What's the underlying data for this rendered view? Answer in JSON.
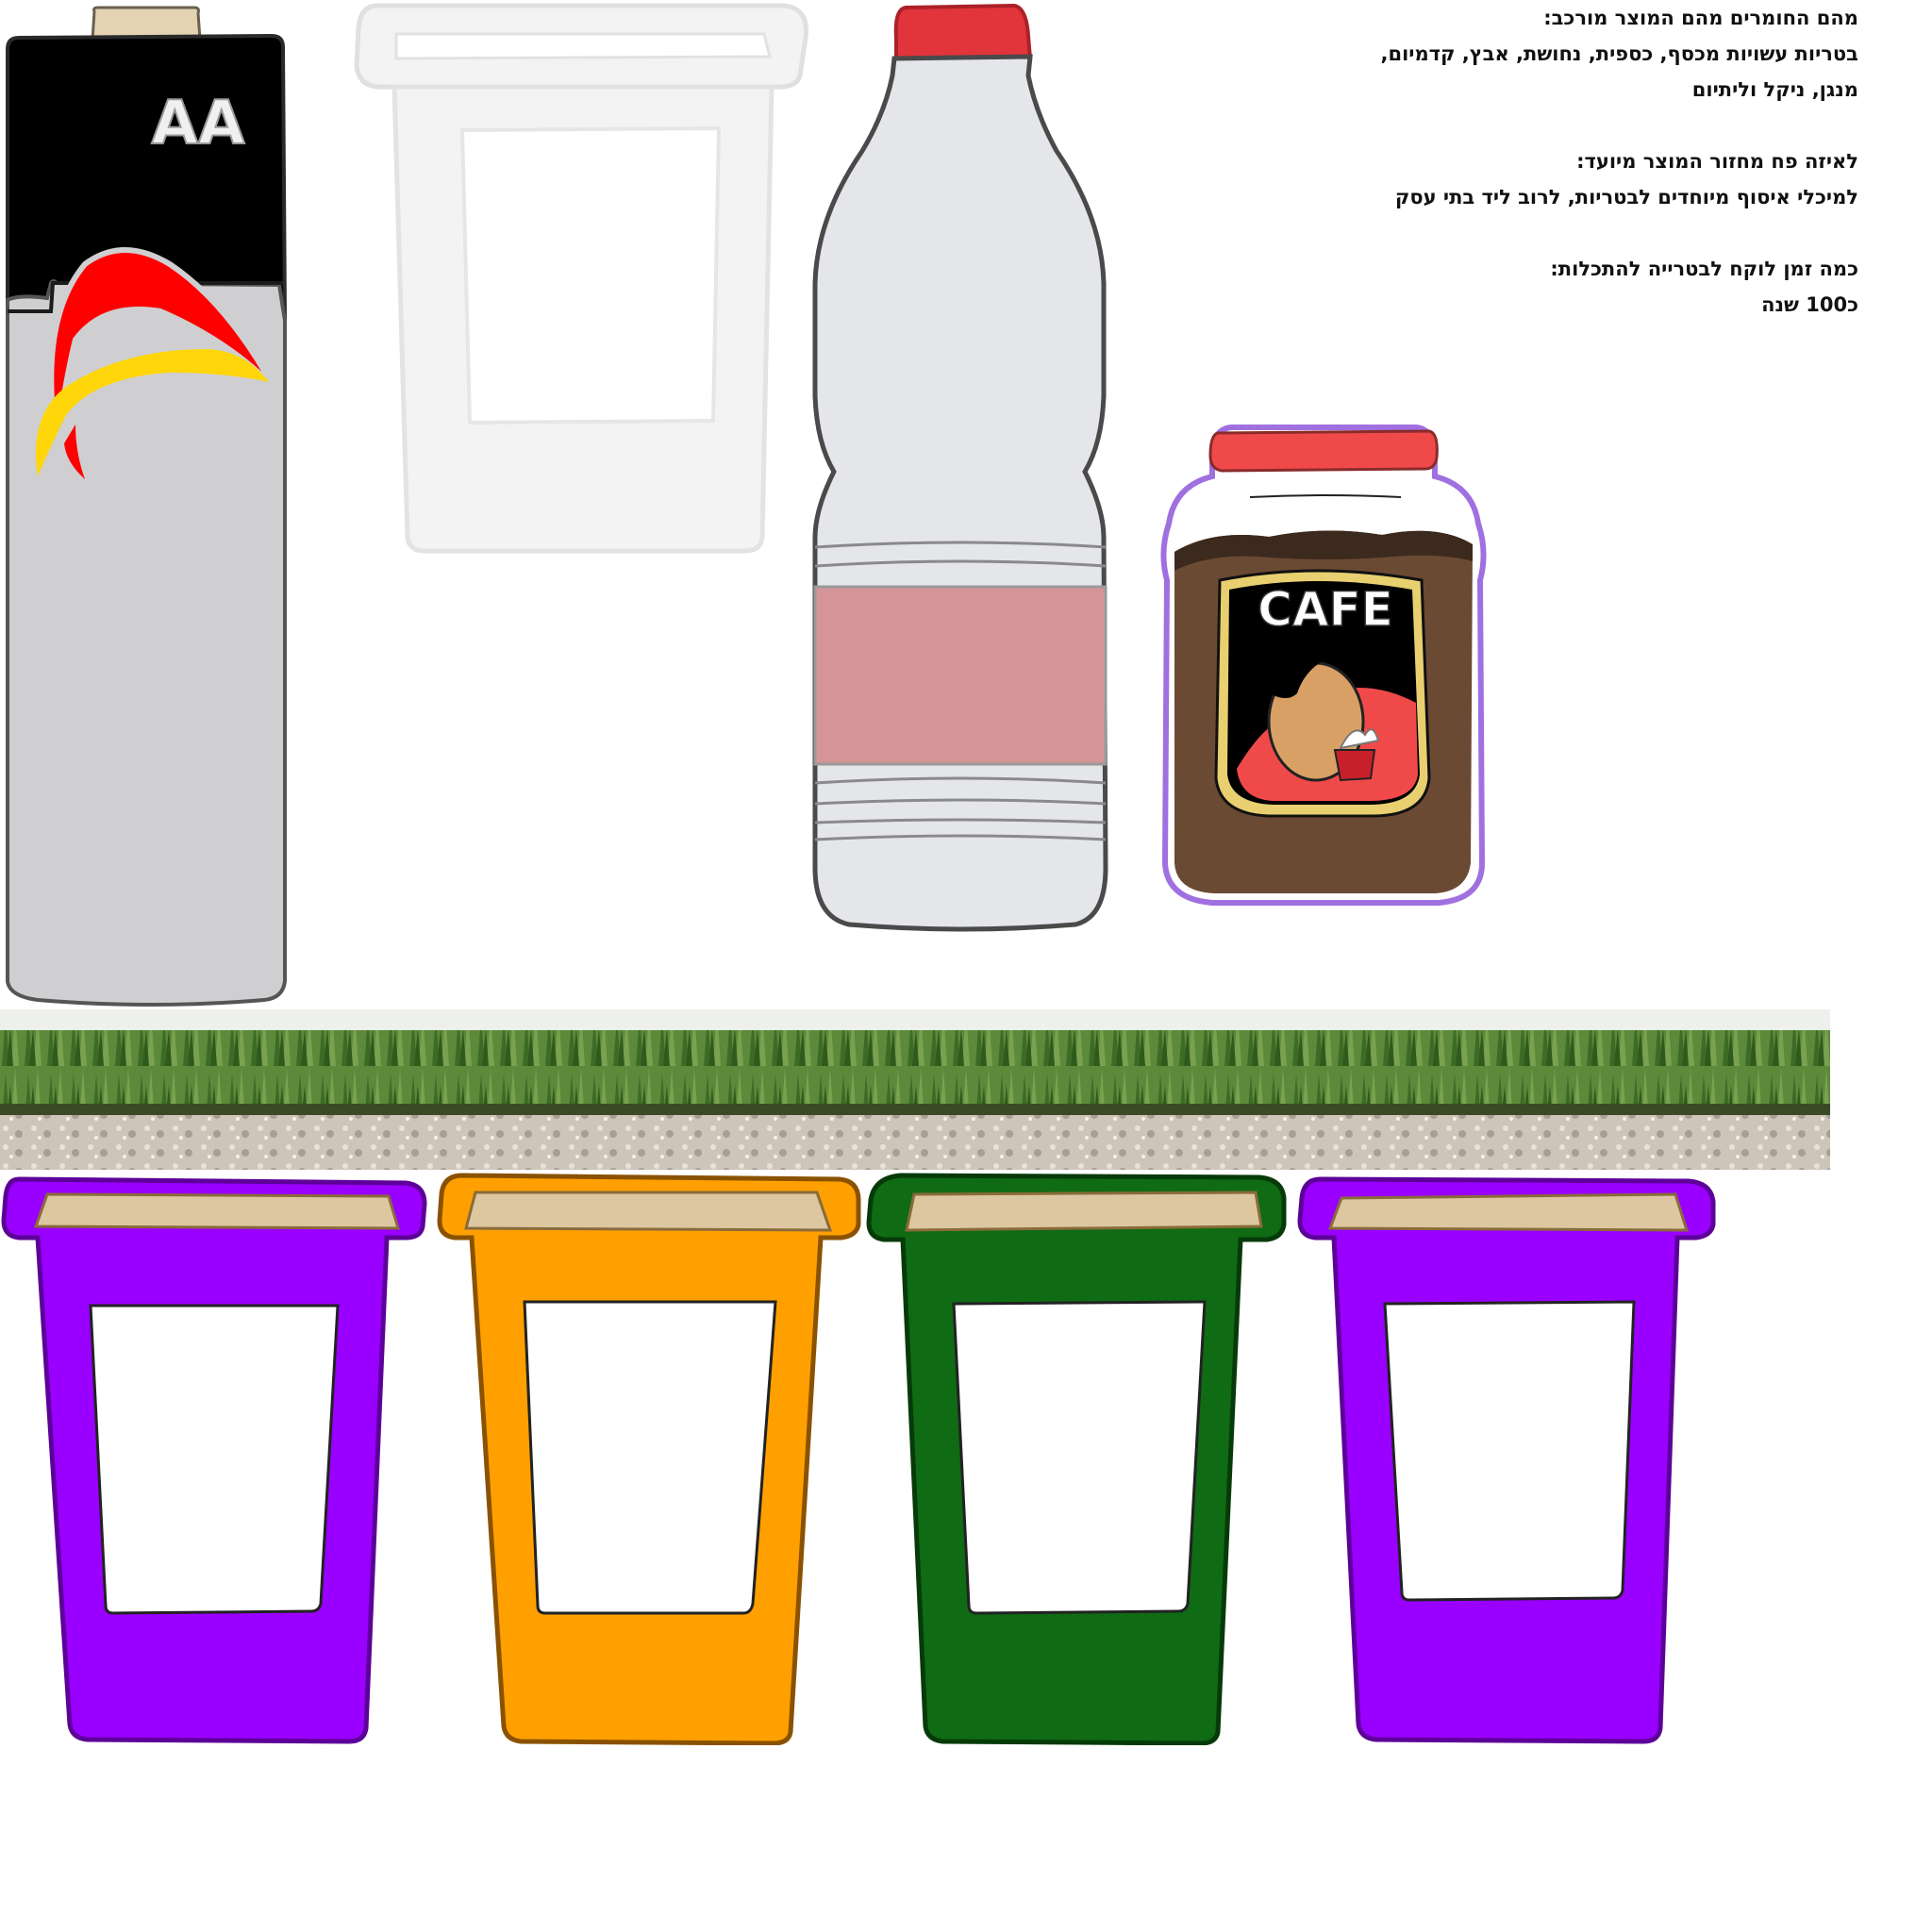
{
  "colors": {
    "battery_black": "#000000",
    "battery_gray": "#cfcfd2",
    "cup_white": "#f3f3f3",
    "bottle_body": "#e4e6ea",
    "bottle_cap": "#e1343b",
    "bottle_label": "#d59598",
    "jar_lid": "#ef4a49",
    "jar_coffee": "#6b4a34",
    "jar_outline": "#a070e0",
    "bin_purple": "#9a00ff",
    "bin_orange": "#ffa000",
    "bin_green": "#0f6b14",
    "bin_lid_inner": "#dcc7a1",
    "grass": "#5c8a3a",
    "gravel": "#cdc5ba"
  },
  "items": {
    "battery": {
      "label": "AA",
      "icon": "aa-battery-icon"
    },
    "cup": {
      "icon": "plastic-cup-icon"
    },
    "bottle": {
      "icon": "plastic-bottle-icon"
    },
    "jar": {
      "label": "CAFE",
      "icon": "glass-coffee-jar-icon"
    }
  },
  "info": {
    "materials_question": "מהם החומרים מהם המוצר מורכב:",
    "materials_answer_line1": "בטריות עשויות מכסף, כספית, נחושת, אבץ, קדמיום,",
    "materials_answer_line2": "מנגן, ניקל וליתיום",
    "bin_question": "לאיזה פח מחזור המוצר מיועד:",
    "bin_answer": "למיכלי איסוף מיוחדים לבטריות, לרוב ליד בתי עסק",
    "decompose_question": "כמה זמן לוקח לבטרייה להתכלות:",
    "decompose_answer": "כ100 שנה"
  },
  "bins": [
    {
      "color": "purple",
      "icon": "recycling-bin-icon"
    },
    {
      "color": "orange",
      "icon": "recycling-bin-icon"
    },
    {
      "color": "green",
      "icon": "recycling-bin-icon"
    },
    {
      "color": "purple",
      "icon": "recycling-bin-icon"
    }
  ]
}
